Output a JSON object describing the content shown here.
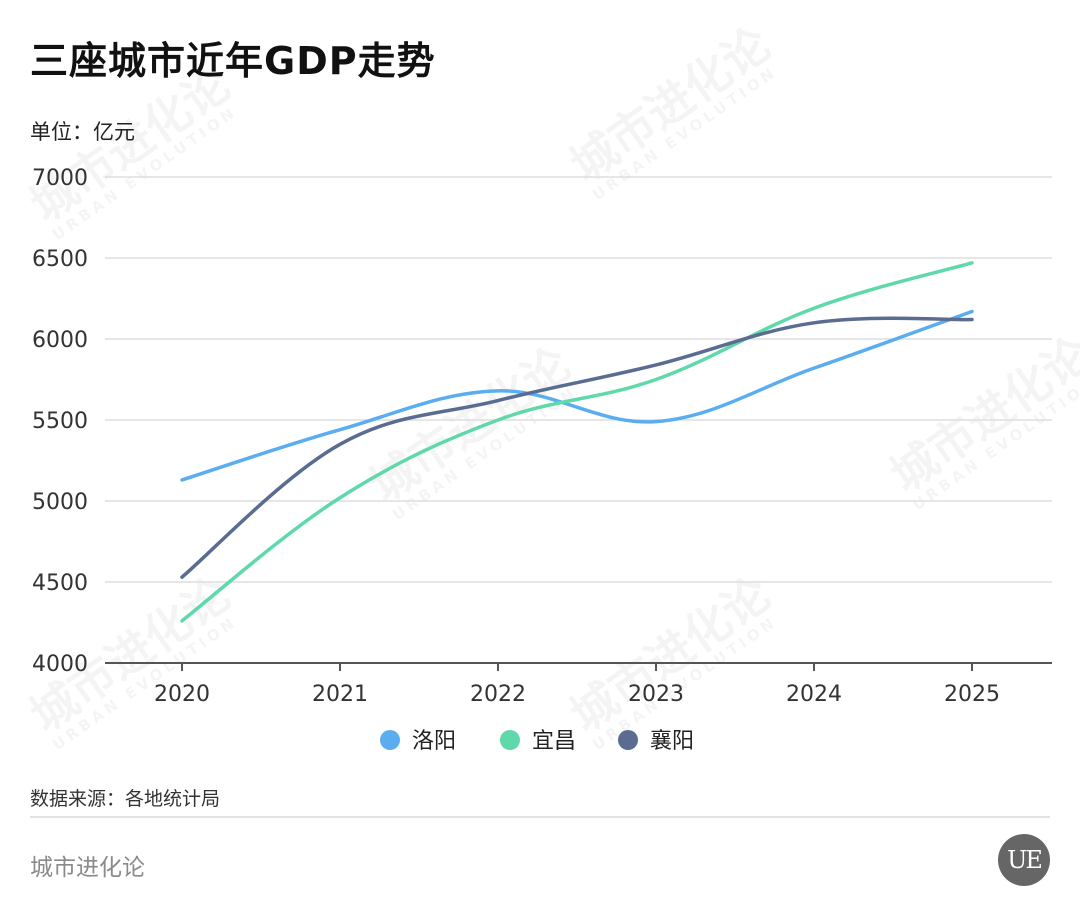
{
  "title": "三座城市近年GDP走势",
  "unit": "单位：亿元",
  "source": "数据来源：各地统计局",
  "brand": "城市进化论",
  "logo_text": "UE",
  "watermark": {
    "cn": "城市进化论",
    "en": "URBAN EVOLUTION"
  },
  "chart_data": {
    "type": "line",
    "categories": [
      "2020",
      "2021",
      "2022",
      "2023",
      "2024",
      "2025"
    ],
    "ylim": [
      4000,
      7000
    ],
    "yticks": [
      4000,
      4500,
      5000,
      5500,
      6000,
      6500,
      7000
    ],
    "grid": true,
    "legend_position": "bottom-center",
    "series": [
      {
        "name": "洛阳",
        "color": "#5aaef0",
        "values": [
          5130,
          5440,
          5680,
          5490,
          5820,
          6170
        ]
      },
      {
        "name": "宜昌",
        "color": "#5fd8aa",
        "values": [
          4260,
          5020,
          5500,
          5750,
          6190,
          6470
        ]
      },
      {
        "name": "襄阳",
        "color": "#5a6c92",
        "values": [
          4530,
          5350,
          5620,
          5840,
          6100,
          6120
        ]
      }
    ]
  }
}
